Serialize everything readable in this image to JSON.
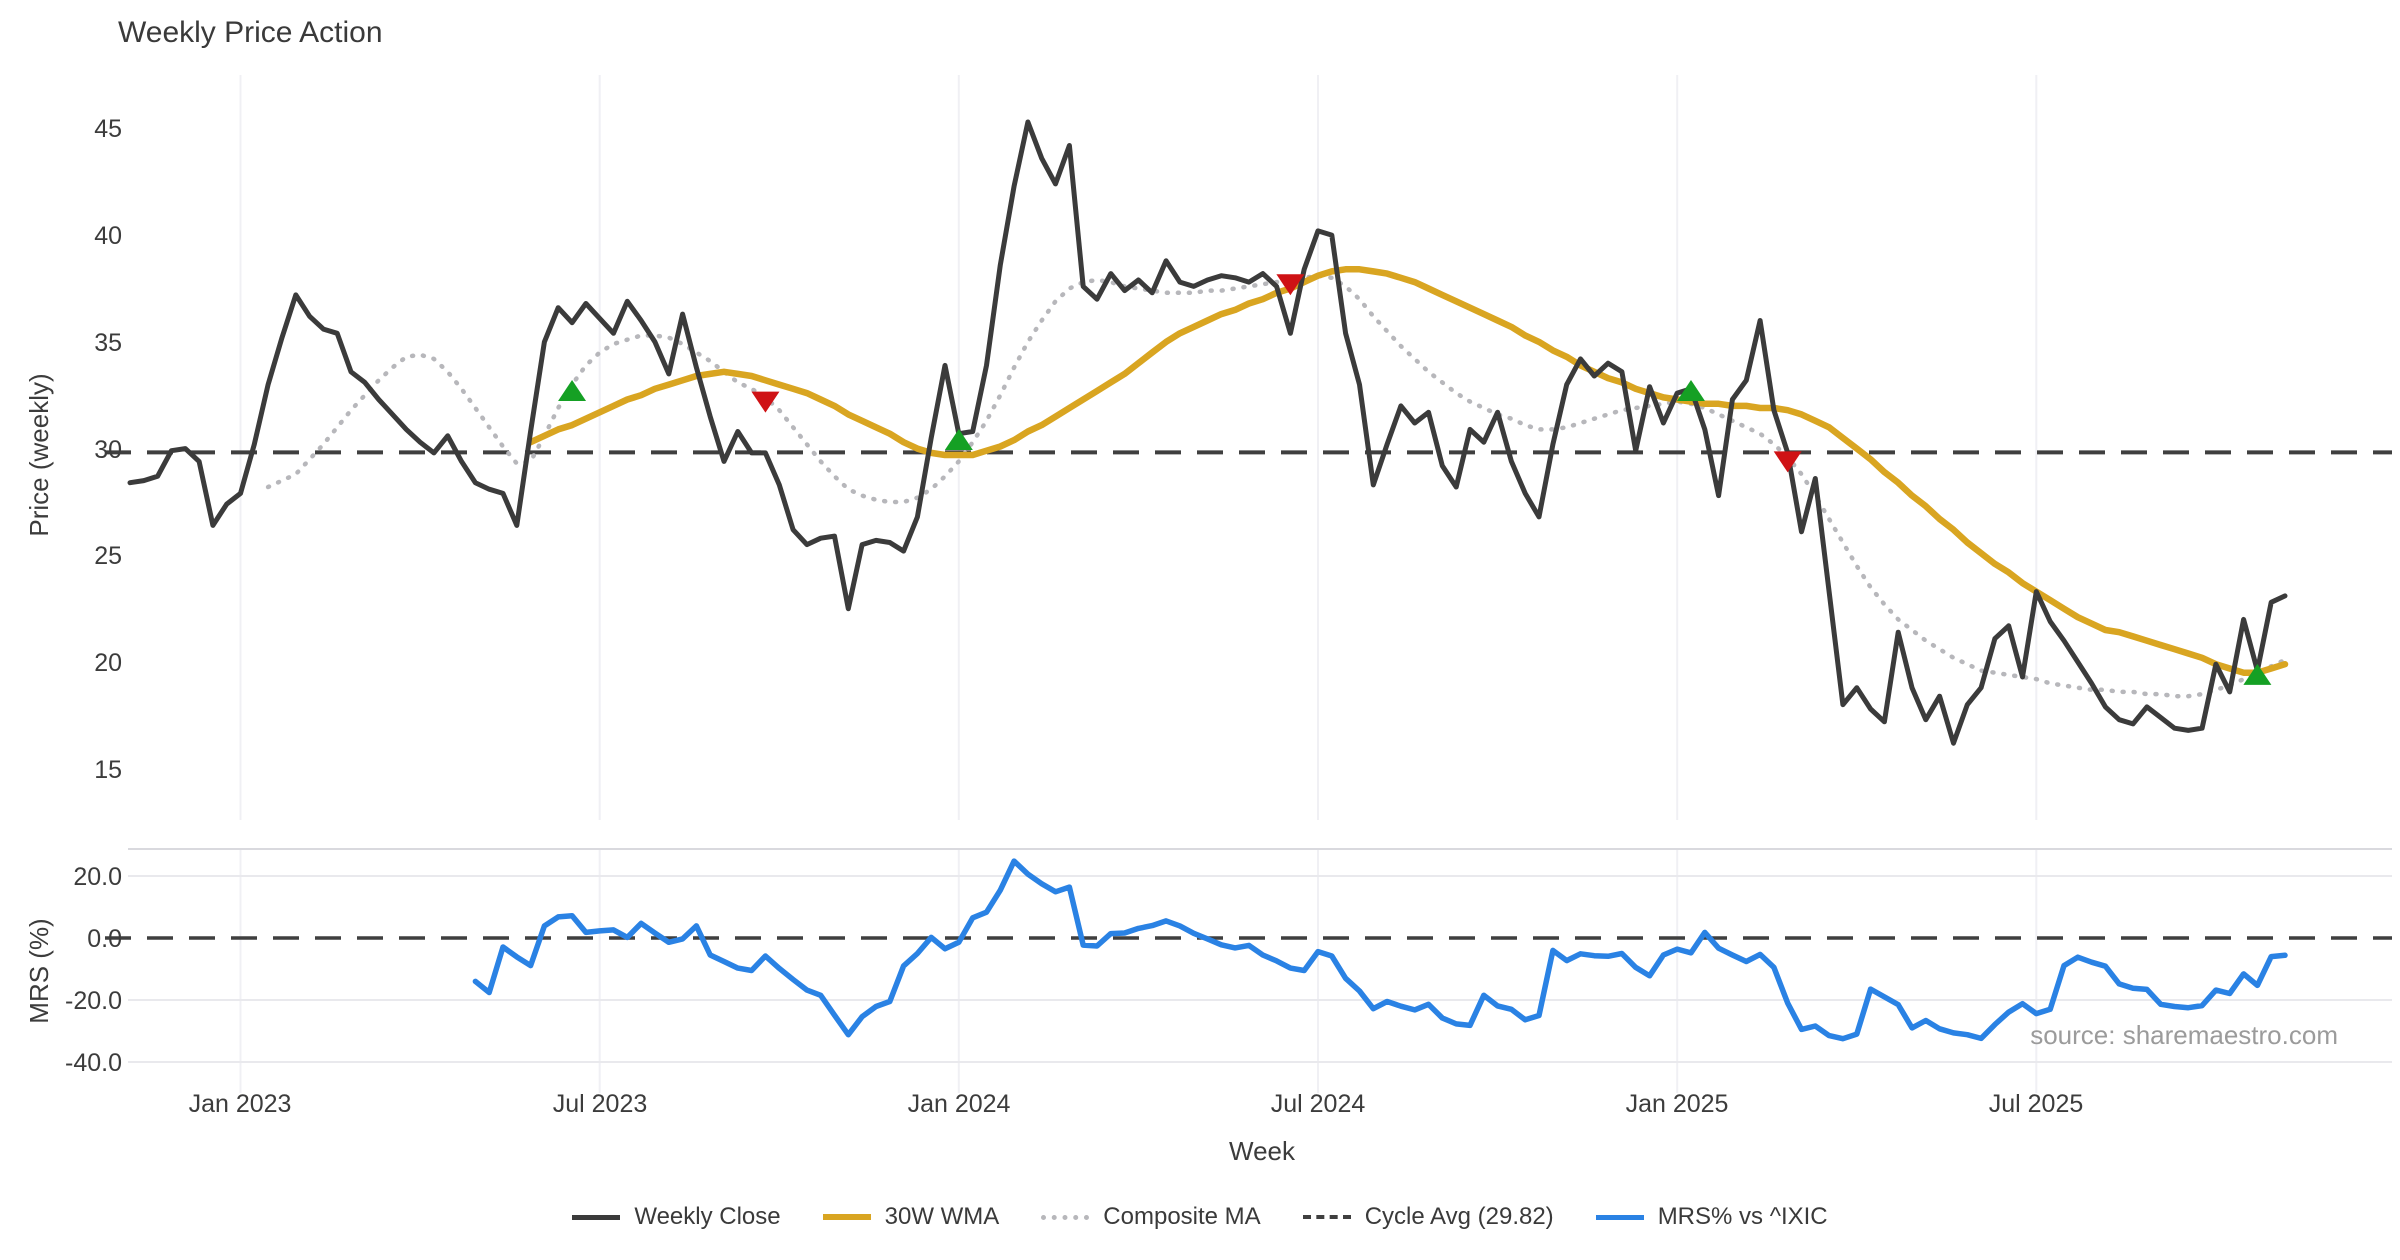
{
  "title": "Weekly Price Action",
  "watermark": "source: sharemaestro.com",
  "colors": {
    "weekly_close": "#3b3b3b",
    "wma30": "#d9a521",
    "composite_ma": "#b7b7bb",
    "cycle_avg": "#3f3f3f",
    "mrs": "#2a82e4",
    "buy_marker": "#15a024",
    "sell_marker": "#cf1215",
    "gridline": "#f0f0f4",
    "mrs_gridline": "#e9e9ed",
    "panel_border": "#d9d9de"
  },
  "legend": {
    "items": [
      {
        "label": "Weekly Close",
        "style": "solid",
        "color": "#3b3b3b",
        "thickness": 5
      },
      {
        "label": "30W WMA",
        "style": "solid",
        "color": "#d9a521",
        "thickness": 6
      },
      {
        "label": "Composite MA",
        "style": "dotted",
        "color": "#b7b7bb",
        "thickness": 5
      },
      {
        "label": "Cycle Avg (29.82)",
        "style": "dashed",
        "color": "#3f3f3f",
        "thickness": 4
      },
      {
        "label": "MRS% vs ^IXIC",
        "style": "solid",
        "color": "#2a82e4",
        "thickness": 5
      }
    ]
  },
  "chart_data": {
    "type": "line",
    "xlabel": "Week",
    "series_length": 157,
    "x_ticks": [
      {
        "index": 8,
        "label": "Jan 2023"
      },
      {
        "index": 34,
        "label": "Jul 2023"
      },
      {
        "index": 60,
        "label": "Jan 2024"
      },
      {
        "index": 86,
        "label": "Jul 2024"
      },
      {
        "index": 112,
        "label": "Jan 2025"
      },
      {
        "index": 138,
        "label": "Jul 2025"
      }
    ],
    "price_panel": {
      "ylabel": "Price (weekly)",
      "ylim": [
        12.6,
        46.8
      ],
      "ytick_labels": [
        "45",
        "40",
        "35",
        "30",
        "25",
        "20",
        "15"
      ],
      "yticks": [
        45,
        40,
        35,
        30,
        25,
        20,
        15
      ],
      "cycle_avg": 29.82,
      "grid": "vertical-only",
      "series": [
        {
          "name": "Weekly Close",
          "values": [
            28.4,
            28.5,
            28.7,
            29.9,
            30.0,
            29.4,
            26.4,
            27.4,
            27.9,
            30.2,
            33.0,
            35.2,
            37.2,
            36.2,
            35.6,
            35.4,
            33.6,
            33.1,
            32.3,
            31.6,
            30.9,
            30.3,
            29.8,
            30.6,
            29.4,
            28.4,
            28.1,
            27.9,
            26.4,
            30.8,
            35.0,
            36.6,
            35.9,
            36.8,
            36.1,
            35.4,
            36.9,
            36.0,
            35.0,
            33.5,
            36.3,
            33.8,
            31.5,
            29.4,
            30.8,
            29.8,
            29.8,
            28.3,
            26.2,
            25.5,
            25.8,
            25.9,
            22.5,
            25.5,
            25.7,
            25.6,
            25.2,
            26.8,
            30.5,
            33.9,
            30.7,
            30.8,
            33.9,
            38.6,
            42.3,
            45.3,
            43.6,
            42.4,
            44.2,
            37.6,
            37.0,
            38.2,
            37.4,
            37.9,
            37.3,
            38.8,
            37.8,
            37.6,
            37.9,
            38.1,
            38.0,
            37.8,
            38.2,
            37.6,
            35.4,
            38.4,
            40.2,
            40.0,
            35.4,
            33.0,
            28.3,
            30.2,
            32.0,
            31.2,
            31.7,
            29.2,
            28.2,
            30.9,
            30.3,
            31.7,
            29.4,
            27.9,
            26.8,
            30.2,
            33.0,
            34.2,
            33.4,
            34.0,
            33.6,
            29.9,
            32.9,
            31.2,
            32.6,
            32.8,
            30.9,
            27.8,
            32.3,
            33.2,
            36.0,
            31.8,
            29.8,
            26.1,
            28.6,
            23.3,
            18.0,
            18.8,
            17.8,
            17.2,
            21.4,
            18.8,
            17.3,
            18.4,
            16.2,
            18.0,
            18.8,
            21.1,
            21.7,
            19.3,
            23.3,
            21.9,
            21.0,
            20.0,
            19.0,
            17.9,
            17.3,
            17.1,
            17.9,
            17.4,
            16.9,
            16.8,
            16.9,
            19.9,
            18.6,
            22.0,
            19.6,
            22.8,
            23.1
          ]
        },
        {
          "name": "30W WMA",
          "values": [
            null,
            null,
            null,
            null,
            null,
            null,
            null,
            null,
            null,
            null,
            null,
            null,
            null,
            null,
            null,
            null,
            null,
            null,
            null,
            null,
            null,
            null,
            null,
            null,
            null,
            null,
            null,
            null,
            null,
            30.3,
            30.6,
            30.9,
            31.1,
            31.4,
            31.7,
            32.0,
            32.3,
            32.5,
            32.8,
            33.0,
            33.2,
            33.4,
            33.5,
            33.6,
            33.5,
            33.4,
            33.2,
            33.0,
            32.8,
            32.6,
            32.3,
            32.0,
            31.6,
            31.3,
            31.0,
            30.7,
            30.3,
            30.0,
            29.8,
            29.7,
            29.7,
            29.7,
            29.9,
            30.1,
            30.4,
            30.8,
            31.1,
            31.5,
            31.9,
            32.3,
            32.7,
            33.1,
            33.5,
            34.0,
            34.5,
            35.0,
            35.4,
            35.7,
            36.0,
            36.3,
            36.5,
            36.8,
            37.0,
            37.3,
            37.5,
            37.8,
            38.1,
            38.3,
            38.4,
            38.4,
            38.3,
            38.2,
            38.0,
            37.8,
            37.5,
            37.2,
            36.9,
            36.6,
            36.3,
            36.0,
            35.7,
            35.3,
            35.0,
            34.6,
            34.3,
            33.9,
            33.6,
            33.3,
            33.1,
            32.8,
            32.6,
            32.4,
            32.3,
            32.2,
            32.1,
            32.1,
            32.0,
            32.0,
            31.9,
            31.9,
            31.8,
            31.6,
            31.3,
            31.0,
            30.5,
            30.0,
            29.5,
            28.9,
            28.4,
            27.8,
            27.3,
            26.7,
            26.2,
            25.6,
            25.1,
            24.6,
            24.2,
            23.7,
            23.3,
            22.9,
            22.5,
            22.1,
            21.8,
            21.5,
            21.4,
            21.2,
            21.0,
            20.8,
            20.6,
            20.4,
            20.2,
            19.9,
            19.7,
            19.5,
            19.5,
            19.7,
            19.9
          ]
        },
        {
          "name": "Composite MA",
          "values": [
            null,
            null,
            null,
            null,
            null,
            null,
            null,
            null,
            null,
            null,
            28.2,
            28.5,
            28.8,
            29.5,
            30.2,
            31.0,
            31.8,
            32.5,
            33.2,
            33.8,
            34.3,
            34.4,
            34.2,
            33.6,
            32.8,
            31.9,
            31.0,
            30.1,
            29.3,
            29.4,
            30.6,
            31.9,
            33.0,
            33.9,
            34.5,
            34.9,
            35.1,
            35.3,
            35.3,
            35.2,
            34.9,
            34.5,
            34.1,
            33.6,
            33.1,
            32.8,
            32.4,
            31.8,
            31.0,
            30.2,
            29.4,
            28.7,
            28.1,
            27.8,
            27.6,
            27.5,
            27.5,
            27.7,
            28.1,
            28.7,
            29.4,
            30.3,
            31.3,
            32.5,
            33.8,
            35.0,
            36.0,
            36.9,
            37.5,
            37.8,
            37.9,
            37.8,
            37.6,
            37.5,
            37.4,
            37.3,
            37.3,
            37.3,
            37.4,
            37.4,
            37.5,
            37.6,
            37.7,
            37.8,
            37.9,
            38.0,
            38.1,
            38.0,
            37.6,
            37.0,
            36.2,
            35.5,
            34.8,
            34.2,
            33.6,
            33.1,
            32.6,
            32.2,
            31.9,
            31.6,
            31.4,
            31.1,
            30.9,
            30.9,
            31.0,
            31.2,
            31.4,
            31.6,
            31.8,
            31.9,
            32.0,
            32.1,
            32.2,
            32.1,
            31.9,
            31.6,
            31.3,
            31.0,
            30.7,
            30.2,
            29.6,
            28.8,
            27.8,
            26.7,
            25.6,
            24.5,
            23.5,
            22.7,
            22.0,
            21.5,
            21.0,
            20.6,
            20.2,
            19.9,
            19.6,
            19.5,
            19.4,
            19.3,
            19.2,
            19.0,
            18.9,
            18.8,
            18.7,
            18.7,
            18.6,
            18.6,
            18.5,
            18.5,
            18.4,
            18.4,
            18.5,
            18.7,
            18.9,
            19.2,
            19.5,
            19.8,
            20.1
          ]
        }
      ],
      "markers": {
        "buy": [
          {
            "index": 32,
            "price": 32.7
          },
          {
            "index": 60,
            "price": 30.4
          },
          {
            "index": 113,
            "price": 32.7
          },
          {
            "index": 154,
            "price": 19.4
          }
        ],
        "sell": [
          {
            "index": 46,
            "price": 32.2
          },
          {
            "index": 84,
            "price": 37.7
          },
          {
            "index": 120,
            "price": 29.4
          }
        ]
      }
    },
    "mrs_panel": {
      "ylabel": "MRS (%)",
      "ylim": [
        -50,
        28.7
      ],
      "ytick_labels": [
        "20.0",
        "0.0",
        "-20.0",
        "-40.0"
      ],
      "yticks": [
        20,
        0,
        -20,
        -40
      ],
      "zero_line": 0,
      "series": [
        {
          "name": "MRS% vs ^IXIC",
          "values": [
            null,
            null,
            null,
            null,
            null,
            null,
            null,
            null,
            null,
            null,
            null,
            null,
            null,
            null,
            null,
            null,
            null,
            null,
            null,
            null,
            null,
            null,
            null,
            null,
            null,
            -14.0,
            -17.6,
            -2.9,
            -6.1,
            -8.9,
            3.9,
            6.8,
            7.2,
            1.8,
            2.3,
            2.6,
            0.2,
            4.7,
            1.6,
            -1.4,
            -0.3,
            3.9,
            -5.5,
            -7.6,
            -9.7,
            -10.5,
            -5.8,
            -9.8,
            -13.4,
            -16.8,
            -18.5,
            -24.9,
            -31.2,
            -25.4,
            -22.1,
            -20.5,
            -9.0,
            -5.0,
            0.2,
            -3.5,
            -1.4,
            6.5,
            8.3,
            15.4,
            24.8,
            20.6,
            17.5,
            14.9,
            16.4,
            -2.3,
            -2.6,
            1.4,
            1.6,
            3.1,
            4.0,
            5.5,
            3.9,
            1.5,
            -0.3,
            -2.2,
            -3.2,
            -2.4,
            -5.5,
            -7.4,
            -9.7,
            -10.5,
            -4.4,
            -5.8,
            -13.0,
            -17.1,
            -22.8,
            -20.5,
            -22.0,
            -23.2,
            -21.4,
            -25.8,
            -27.7,
            -28.2,
            -18.5,
            -21.9,
            -23.0,
            -26.4,
            -25.0,
            -4.0,
            -7.3,
            -5.1,
            -5.7,
            -5.9,
            -5.0,
            -9.5,
            -12.2,
            -5.5,
            -3.6,
            -4.8,
            1.8,
            -3.3,
            -5.5,
            -7.6,
            -5.3,
            -9.5,
            -21.0,
            -29.5,
            -28.4,
            -31.5,
            -32.5,
            -31.0,
            -16.5,
            -19.0,
            -21.5,
            -29.0,
            -26.6,
            -29.3,
            -30.6,
            -31.2,
            -32.4,
            -27.9,
            -23.9,
            -21.2,
            -24.4,
            -23.0,
            -8.9,
            -6.2,
            -7.8,
            -9.1,
            -14.8,
            -16.2,
            -16.6,
            -21.4,
            -22.1,
            -22.5,
            -21.8,
            -16.8,
            -17.9,
            -11.6,
            -15.3,
            -6.0,
            -5.6
          ]
        }
      ]
    }
  }
}
